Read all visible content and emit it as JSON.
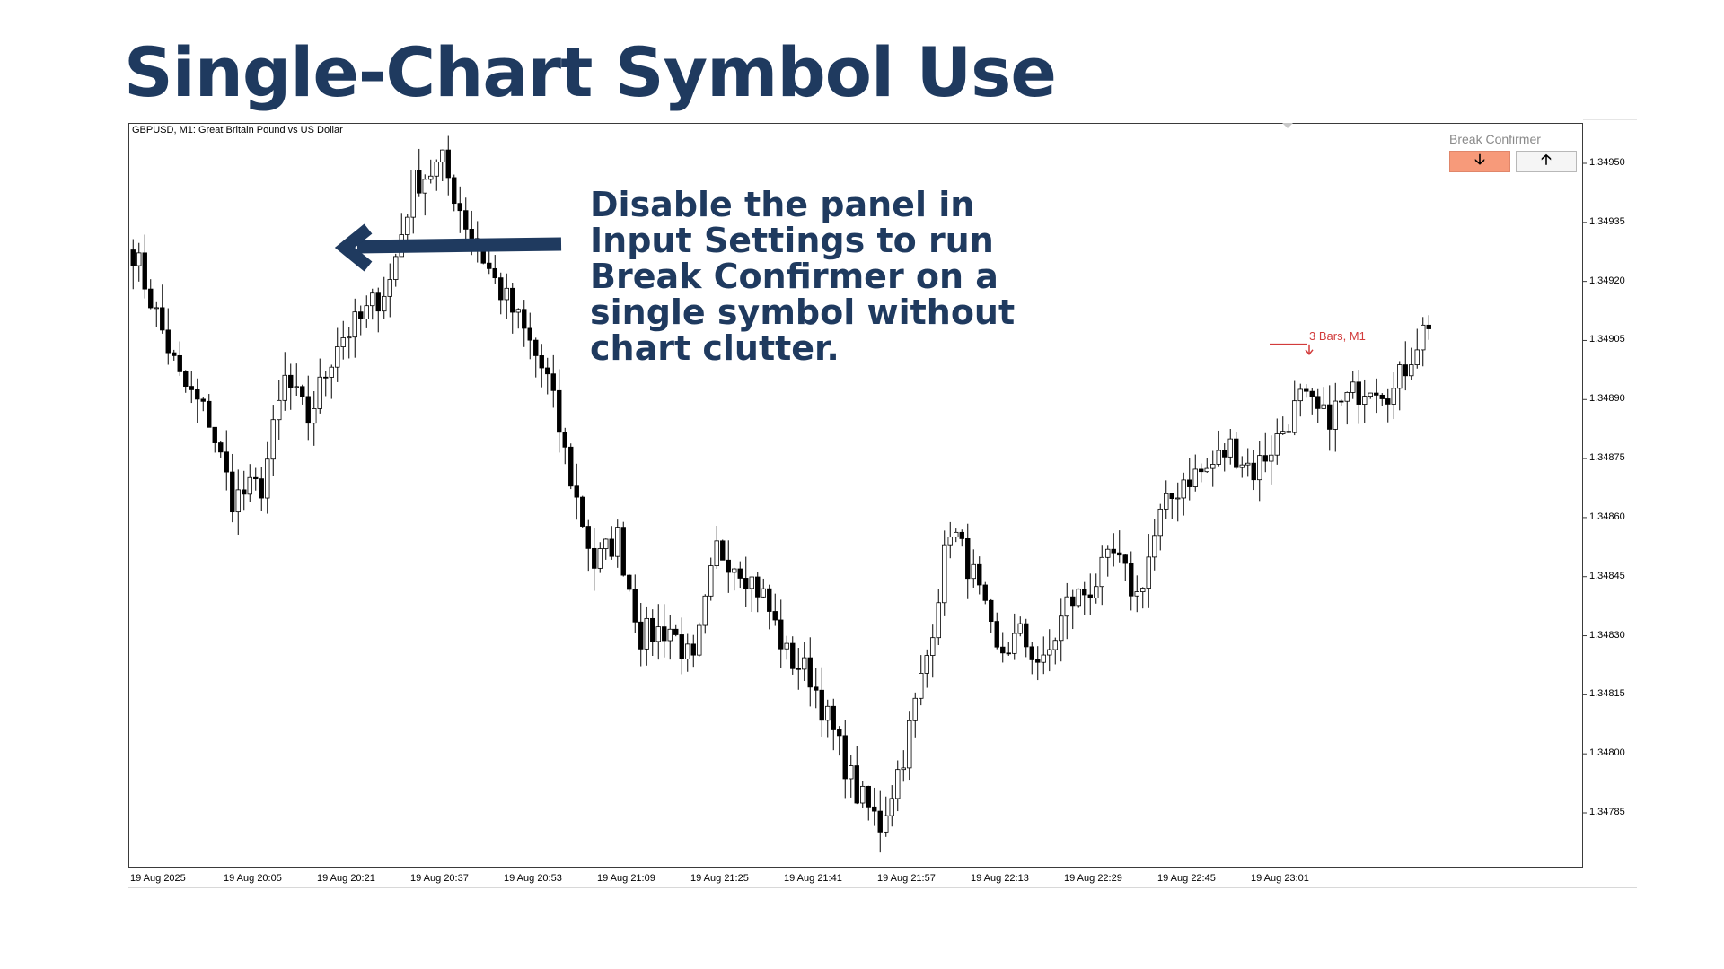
{
  "slide": {
    "title": "Single-Chart Symbol Use",
    "callout": "Disable the panel in Input Settings to run Break Confirmer on a single symbol without chart clutter."
  },
  "panel": {
    "title": "Break Confirmer",
    "down_icon": "arrow-down-icon",
    "up_icon": "arrow-up-icon",
    "down_glyph": "🡣",
    "up_glyph": "🡡",
    "down_color": "#f79a7a",
    "up_color": "#f5f5f5"
  },
  "marker": {
    "label": "3 Bars, M1",
    "price": 1.34904,
    "color": "#d23b3b"
  },
  "chart_data": {
    "type": "candlestick",
    "title": "GBPUSD, M1:  Great Britain Pound vs US Dollar",
    "ylim": [
      1.34765,
      1.3496
    ],
    "y_ticks": [
      "1.34950",
      "1.34935",
      "1.34920",
      "1.34905",
      "1.34890",
      "1.34875",
      "1.34860",
      "1.34845",
      "1.34830",
      "1.34815",
      "1.34800",
      "1.34785"
    ],
    "x_ticks": [
      "19 Aug 2025",
      "19 Aug 20:05",
      "19 Aug 20:21",
      "19 Aug 20:37",
      "19 Aug 20:53",
      "19 Aug 21:09",
      "19 Aug 21:25",
      "19 Aug 21:41",
      "19 Aug 21:57",
      "19 Aug 22:13",
      "19 Aug 22:29",
      "19 Aug 22:45",
      "19 Aug 23:01"
    ],
    "bars_per_tick": 16,
    "anchors": [
      [
        0,
        1.34928
      ],
      [
        8,
        1.34895
      ],
      [
        13,
        1.34885
      ],
      [
        17,
        1.34865
      ],
      [
        22,
        1.34868
      ],
      [
        26,
        1.34895
      ],
      [
        30,
        1.34885
      ],
      [
        35,
        1.34905
      ],
      [
        39,
        1.3491
      ],
      [
        44,
        1.3492
      ],
      [
        48,
        1.34945
      ],
      [
        53,
        1.3495
      ],
      [
        57,
        1.34935
      ],
      [
        62,
        1.3492
      ],
      [
        66,
        1.3491
      ],
      [
        71,
        1.34895
      ],
      [
        75,
        1.3487
      ],
      [
        79,
        1.34848
      ],
      [
        83,
        1.34855
      ],
      [
        87,
        1.3483
      ],
      [
        92,
        1.34832
      ],
      [
        96,
        1.34822
      ],
      [
        100,
        1.34852
      ],
      [
        104,
        1.34848
      ],
      [
        108,
        1.3484
      ],
      [
        112,
        1.34825
      ],
      [
        116,
        1.3482
      ],
      [
        120,
        1.34805
      ],
      [
        124,
        1.3479
      ],
      [
        128,
        1.34782
      ],
      [
        132,
        1.348
      ],
      [
        136,
        1.34825
      ],
      [
        140,
        1.34858
      ],
      [
        144,
        1.34845
      ],
      [
        148,
        1.34825
      ],
      [
        152,
        1.3483
      ],
      [
        156,
        1.34822
      ],
      [
        160,
        1.34838
      ],
      [
        164,
        1.34842
      ],
      [
        168,
        1.3485
      ],
      [
        172,
        1.3484
      ],
      [
        176,
        1.3486
      ],
      [
        180,
        1.3487
      ],
      [
        184,
        1.34872
      ],
      [
        188,
        1.34878
      ],
      [
        192,
        1.34872
      ],
      [
        196,
        1.3488
      ],
      [
        200,
        1.3489
      ],
      [
        204,
        1.34885
      ],
      [
        208,
        1.3489
      ],
      [
        212,
        1.34895
      ],
      [
        216,
        1.34892
      ],
      [
        220,
        1.34905
      ],
      [
        222,
        1.3491
      ]
    ]
  }
}
